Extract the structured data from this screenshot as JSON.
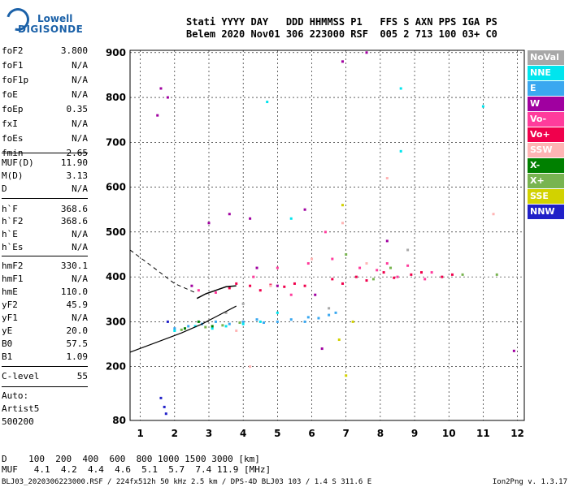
{
  "logo": {
    "line1": "Lowell",
    "line2": "DIGISONDE"
  },
  "header": {
    "line1": "Stati YYYY DAY   DDD HHMMSS P1   FFS S AXN PPS IGA PS",
    "line2": "Belem 2020 Nov01 306 223000 RSF  005 2 713 100 03+ C0"
  },
  "params": [
    {
      "name": "foF2",
      "value": "3.800"
    },
    {
      "name": "foF1",
      "value": "N/A"
    },
    {
      "name": "foF1p",
      "value": "N/A"
    },
    {
      "name": "foE",
      "value": "N/A"
    },
    {
      "name": "foEp",
      "value": "0.35"
    },
    {
      "name": "fxI",
      "value": "N/A"
    },
    {
      "name": "foEs",
      "value": "N/A"
    },
    {
      "name": "fmin",
      "value": "2.65"
    },
    {
      "name": "MUF(D)",
      "value": "11.90"
    },
    {
      "name": "M(D)",
      "value": "3.13"
    },
    {
      "name": "D",
      "value": "N/A"
    },
    {
      "name": "h`F",
      "value": "368.6"
    },
    {
      "name": "h`F2",
      "value": "368.6"
    },
    {
      "name": "h`E",
      "value": "N/A"
    },
    {
      "name": "h`Es",
      "value": "N/A"
    },
    {
      "name": "hmF2",
      "value": "330.1"
    },
    {
      "name": "hmF1",
      "value": "N/A"
    },
    {
      "name": "hmE",
      "value": "110.0"
    },
    {
      "name": "yF2",
      "value": "45.9"
    },
    {
      "name": "yF1",
      "value": "N/A"
    },
    {
      "name": "yE",
      "value": "20.0"
    },
    {
      "name": "B0",
      "value": "57.5"
    },
    {
      "name": "B1",
      "value": "1.09"
    },
    {
      "name": "C-level",
      "value": "55"
    }
  ],
  "auto": {
    "line1": "Auto:",
    "line2": "Artist5",
    "line3": "500200"
  },
  "legend": [
    {
      "label": "NoVal",
      "color": "#a8a8a8"
    },
    {
      "label": "NNE",
      "color": "#00e5ee"
    },
    {
      "label": "E",
      "color": "#3aa8f0"
    },
    {
      "label": "W",
      "color": "#a000a0"
    },
    {
      "label": "Vo-",
      "color": "#ff3c9c"
    },
    {
      "label": "Vo+",
      "color": "#f0004c"
    },
    {
      "label": "SSW",
      "color": "#ffb4b4"
    },
    {
      "label": "X-",
      "color": "#008000"
    },
    {
      "label": "X+",
      "color": "#78b450"
    },
    {
      "label": "SSE",
      "color": "#d2d200"
    },
    {
      "label": "NNW",
      "color": "#2020c8"
    }
  ],
  "dm_table": {
    "d_line": "D    100  200  400  600  800 1000 1500 3000 [km]",
    "muf_line": "MUF   4.1  4.2  4.4  4.6  5.1  5.7  7.4 11.9 [MHz]"
  },
  "footer": {
    "left": "BLJ03_2020306223000.RSF / 224fx512h 50 kHz 2.5 km / DPS-4D BLJ03 103 / 1.4 S 311.6 E",
    "right": "Ion2Png v. 1.3.17"
  },
  "chart_data": {
    "type": "scatter",
    "xlabel": "",
    "ylabel": "",
    "xlim": [
      0.7,
      12.2
    ],
    "ylim": [
      80,
      905
    ],
    "x_ticks": [
      1,
      2,
      3,
      4,
      5,
      6,
      7,
      8,
      9,
      10,
      11,
      12
    ],
    "y_ticks": [
      80,
      200,
      300,
      400,
      500,
      600,
      700,
      800,
      900
    ],
    "grid": true,
    "traces": [
      {
        "name": "F2 O-trace",
        "x": [
          2.65,
          2.9,
          3.2,
          3.5,
          3.8
        ],
        "y": [
          352,
          362,
          370,
          378,
          380
        ]
      },
      {
        "name": "profile",
        "x": [
          0.7,
          1.5,
          2.2,
          2.8,
          3.3,
          3.8
        ],
        "y": [
          232,
          255,
          275,
          295,
          315,
          335
        ]
      },
      {
        "name": "profile-extrapolated",
        "x": [
          0.7,
          1.4,
          2.0,
          2.6
        ],
        "y": [
          460,
          420,
          385,
          365
        ]
      }
    ],
    "echo_clusters": [
      {
        "color": "#a000a0",
        "x": [
          1.5,
          1.6,
          1.8,
          2.5,
          3.0,
          3.6,
          4.2,
          4.4,
          5.0,
          5.8,
          6.1,
          6.3,
          6.9,
          7.6,
          8.2,
          11.9
        ],
        "y": [
          760,
          820,
          800,
          380,
          520,
          540,
          530,
          420,
          380,
          550,
          360,
          240,
          880,
          900,
          480,
          235
        ]
      },
      {
        "color": "#f0004c",
        "x": [
          3.6,
          3.8,
          4.2,
          4.5,
          4.8,
          5.2,
          5.5,
          5.8,
          6.6,
          6.9,
          7.3,
          7.6,
          8.1,
          8.4,
          8.9,
          9.2,
          9.8,
          10.1
        ],
        "y": [
          375,
          385,
          380,
          370,
          382,
          378,
          385,
          380,
          395,
          385,
          400,
          392,
          410,
          398,
          405,
          410,
          400,
          405
        ]
      },
      {
        "color": "#ff3c9c",
        "x": [
          2.7,
          3.2,
          4.3,
          5.0,
          5.4,
          5.9,
          6.4,
          6.6,
          7.4,
          7.9,
          8.2,
          8.5,
          8.8,
          9.3,
          9.5
        ],
        "y": [
          370,
          365,
          400,
          420,
          360,
          430,
          500,
          440,
          420,
          415,
          430,
          400,
          425,
          395,
          410
        ]
      },
      {
        "color": "#3aa8f0",
        "x": [
          2.0,
          2.4,
          2.8,
          3.2,
          3.6,
          4.0,
          4.4,
          4.6,
          5.0,
          5.4,
          5.8,
          5.9,
          6.2,
          6.5,
          6.7
        ],
        "y": [
          285,
          290,
          295,
          300,
          295,
          300,
          305,
          298,
          300,
          305,
          300,
          310,
          308,
          315,
          320
        ]
      },
      {
        "color": "#00e5ee",
        "x": [
          2.0,
          2.6,
          3.1,
          3.5,
          4.0,
          4.5,
          4.7,
          5.0,
          5.4,
          8.6,
          8.6,
          11.0
        ],
        "y": [
          280,
          290,
          285,
          290,
          295,
          300,
          790,
          320,
          530,
          820,
          680,
          780
        ]
      },
      {
        "color": "#78b450",
        "x": [
          2.2,
          2.9,
          3.4,
          3.9,
          7.0,
          7.8,
          8.3,
          10.4,
          11.4
        ],
        "y": [
          282,
          288,
          292,
          298,
          450,
          395,
          420,
          405,
          405
        ]
      },
      {
        "color": "#d2d200",
        "x": [
          6.8,
          7.0,
          7.2,
          6.9
        ],
        "y": [
          260,
          180,
          300,
          560
        ]
      },
      {
        "color": "#2020c8",
        "x": [
          1.6,
          1.7,
          1.75,
          1.8
        ],
        "y": [
          130,
          110,
          95,
          300
        ]
      },
      {
        "color": "#ffb4b4",
        "x": [
          3.8,
          4.2,
          4.8,
          6.0,
          6.9,
          7.6,
          8.2,
          11.3
        ],
        "y": [
          280,
          200,
          380,
          440,
          520,
          430,
          620,
          540
        ]
      },
      {
        "color": "#008000",
        "x": [
          2.3,
          2.7,
          3.1
        ],
        "y": [
          285,
          300,
          290
        ]
      },
      {
        "color": "#a8a8a8",
        "x": [
          3.5,
          4.0,
          6.5,
          8.8
        ],
        "y": [
          320,
          340,
          330,
          460
        ]
      }
    ]
  }
}
